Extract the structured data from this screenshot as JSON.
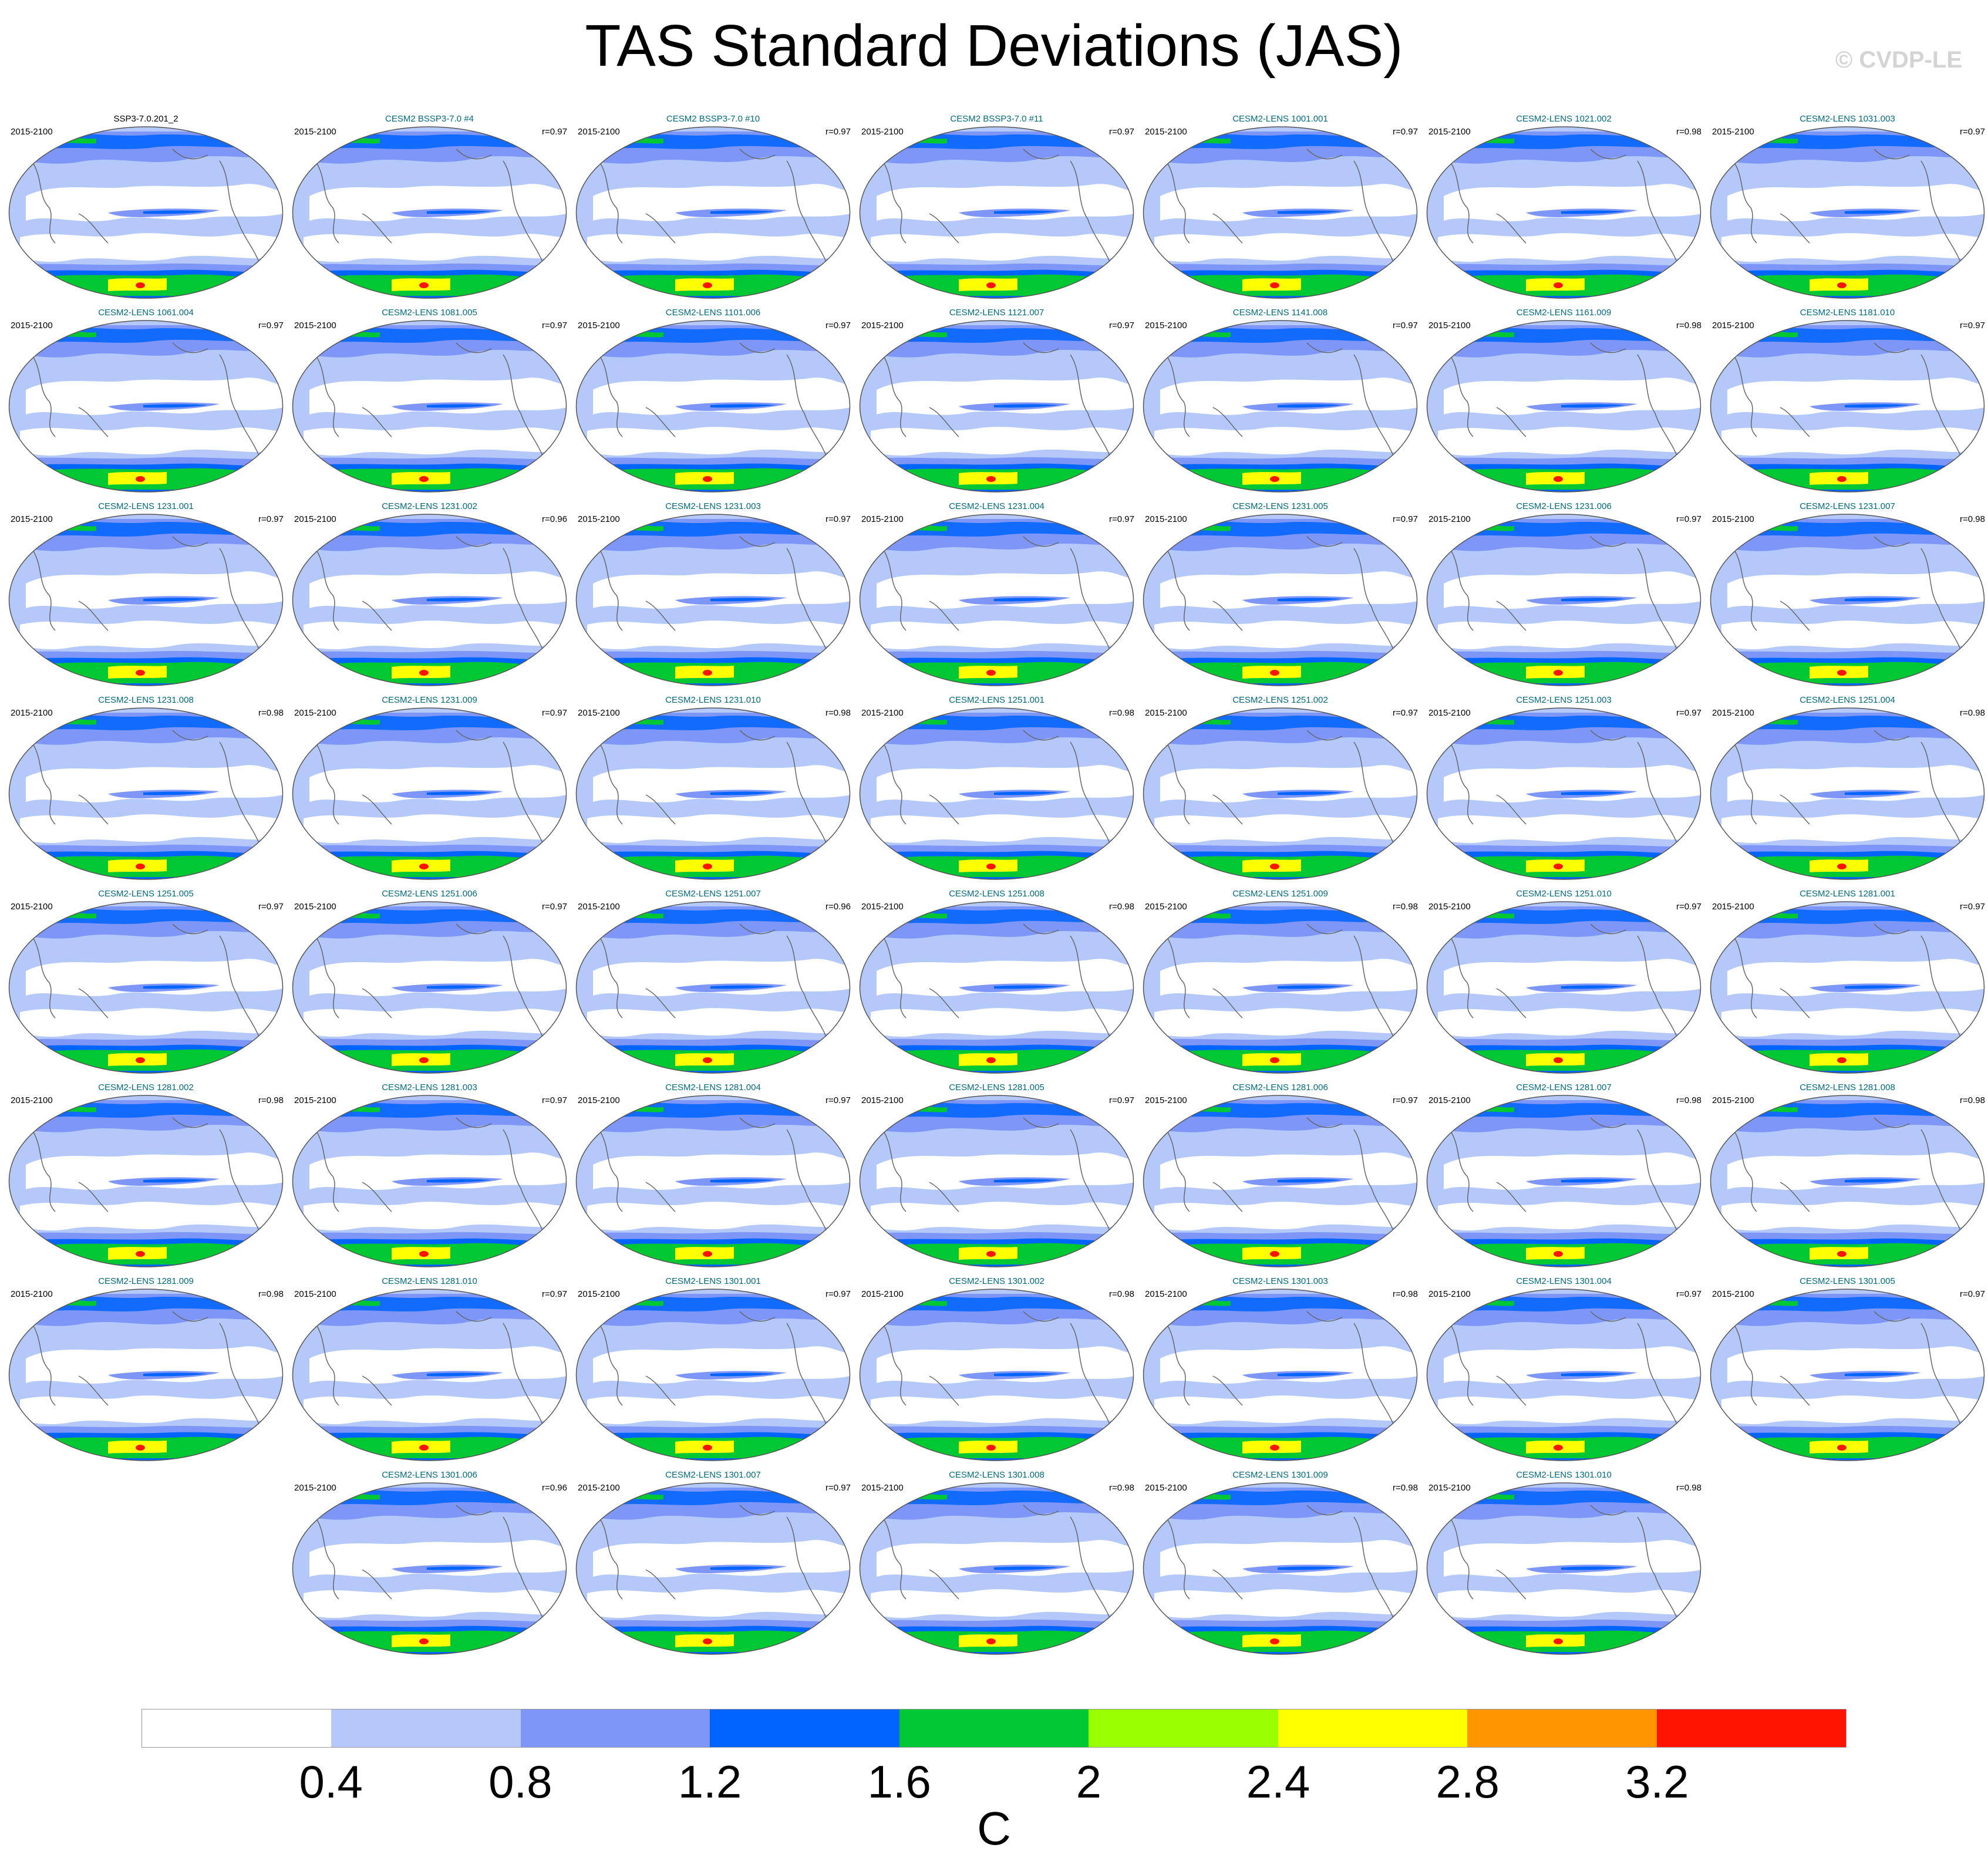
{
  "title": "TAS Standard Deviations (JAS)",
  "copyright": "© CVDP-LE",
  "period": "2015-2100",
  "panels": [
    {
      "name": "SSP3-7.0.201_2",
      "r": "",
      "obs": true
    },
    {
      "name": "CESM2 BSSP3-7.0 #4",
      "r": "r=0.97"
    },
    {
      "name": "CESM2 BSSP3-7.0 #10",
      "r": "r=0.97"
    },
    {
      "name": "CESM2 BSSP3-7.0 #11",
      "r": "r=0.97"
    },
    {
      "name": "CESM2-LENS 1001.001",
      "r": "r=0.97"
    },
    {
      "name": "CESM2-LENS 1021.002",
      "r": "r=0.98"
    },
    {
      "name": "CESM2-LENS 1031.003",
      "r": "r=0.97"
    },
    {
      "name": "CESM2-LENS 1061.004",
      "r": "r=0.97"
    },
    {
      "name": "CESM2-LENS 1081.005",
      "r": "r=0.97"
    },
    {
      "name": "CESM2-LENS 1101.006",
      "r": "r=0.97"
    },
    {
      "name": "CESM2-LENS 1121.007",
      "r": "r=0.97"
    },
    {
      "name": "CESM2-LENS 1141.008",
      "r": "r=0.97"
    },
    {
      "name": "CESM2-LENS 1161.009",
      "r": "r=0.98"
    },
    {
      "name": "CESM2-LENS 1181.010",
      "r": "r=0.97"
    },
    {
      "name": "CESM2-LENS 1231.001",
      "r": "r=0.97"
    },
    {
      "name": "CESM2-LENS 1231.002",
      "r": "r=0.96"
    },
    {
      "name": "CESM2-LENS 1231.003",
      "r": "r=0.97"
    },
    {
      "name": "CESM2-LENS 1231.004",
      "r": "r=0.97"
    },
    {
      "name": "CESM2-LENS 1231.005",
      "r": "r=0.97"
    },
    {
      "name": "CESM2-LENS 1231.006",
      "r": "r=0.97"
    },
    {
      "name": "CESM2-LENS 1231.007",
      "r": "r=0.98"
    },
    {
      "name": "CESM2-LENS 1231.008",
      "r": "r=0.98"
    },
    {
      "name": "CESM2-LENS 1231.009",
      "r": "r=0.97"
    },
    {
      "name": "CESM2-LENS 1231.010",
      "r": "r=0.98"
    },
    {
      "name": "CESM2-LENS 1251.001",
      "r": "r=0.98"
    },
    {
      "name": "CESM2-LENS 1251.002",
      "r": "r=0.97"
    },
    {
      "name": "CESM2-LENS 1251.003",
      "r": "r=0.97"
    },
    {
      "name": "CESM2-LENS 1251.004",
      "r": "r=0.98"
    },
    {
      "name": "CESM2-LENS 1251.005",
      "r": "r=0.97"
    },
    {
      "name": "CESM2-LENS 1251.006",
      "r": "r=0.97"
    },
    {
      "name": "CESM2-LENS 1251.007",
      "r": "r=0.96"
    },
    {
      "name": "CESM2-LENS 1251.008",
      "r": "r=0.98"
    },
    {
      "name": "CESM2-LENS 1251.009",
      "r": "r=0.98"
    },
    {
      "name": "CESM2-LENS 1251.010",
      "r": "r=0.97"
    },
    {
      "name": "CESM2-LENS 1281.001",
      "r": "r=0.97"
    },
    {
      "name": "CESM2-LENS 1281.002",
      "r": "r=0.98"
    },
    {
      "name": "CESM2-LENS 1281.003",
      "r": "r=0.97"
    },
    {
      "name": "CESM2-LENS 1281.004",
      "r": "r=0.97"
    },
    {
      "name": "CESM2-LENS 1281.005",
      "r": "r=0.97"
    },
    {
      "name": "CESM2-LENS 1281.006",
      "r": "r=0.97"
    },
    {
      "name": "CESM2-LENS 1281.007",
      "r": "r=0.98"
    },
    {
      "name": "CESM2-LENS 1281.008",
      "r": "r=0.98"
    },
    {
      "name": "CESM2-LENS 1281.009",
      "r": "r=0.98"
    },
    {
      "name": "CESM2-LENS 1281.010",
      "r": "r=0.97"
    },
    {
      "name": "CESM2-LENS 1301.001",
      "r": "r=0.97"
    },
    {
      "name": "CESM2-LENS 1301.002",
      "r": "r=0.98"
    },
    {
      "name": "CESM2-LENS 1301.003",
      "r": "r=0.98"
    },
    {
      "name": "CESM2-LENS 1301.004",
      "r": "r=0.97"
    },
    {
      "name": "CESM2-LENS 1301.005",
      "r": "r=0.97"
    },
    {
      "name": "CESM2-LENS 1301.006",
      "r": "r=0.96"
    },
    {
      "name": "CESM2-LENS 1301.007",
      "r": "r=0.97"
    },
    {
      "name": "CESM2-LENS 1301.008",
      "r": "r=0.98"
    },
    {
      "name": "CESM2-LENS 1301.009",
      "r": "r=0.98"
    },
    {
      "name": "CESM2-LENS 1301.010",
      "r": "r=0.98"
    }
  ],
  "colorbar": {
    "colors": [
      "#ffffff",
      "#b4c8fa",
      "#7d96f7",
      "#0064ff",
      "#00c832",
      "#96ff00",
      "#ffff00",
      "#ff9600",
      "#ff1400"
    ],
    "ticks": [
      "0.4",
      "0.8",
      "1.2",
      "1.6",
      "2",
      "2.4",
      "2.8",
      "3.2"
    ],
    "unit": "C"
  },
  "map_colors": {
    "ocean_light": "#b4c8fa",
    "ocean_mid": "#7d96f7",
    "strong": "#0064ff",
    "green": "#00c832",
    "yellow": "#ffff00",
    "red": "#ff1400",
    "coast": "#666666"
  }
}
